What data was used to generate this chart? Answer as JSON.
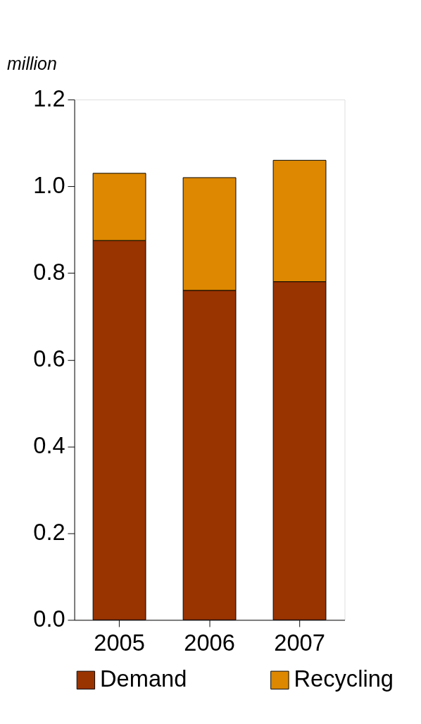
{
  "chart_data": {
    "type": "bar",
    "stacked": true,
    "ylabel": "million",
    "categories": [
      "2005",
      "2006",
      "2007"
    ],
    "series": [
      {
        "name": "Demand",
        "color": "#993300",
        "values": [
          0.875,
          0.76,
          0.78
        ]
      },
      {
        "name": "Recycling",
        "color": "#dd8800",
        "values": [
          0.155,
          0.26,
          0.28
        ]
      }
    ],
    "ylim": [
      0,
      1.2
    ],
    "yticks": [
      {
        "value": 0,
        "label": "0.0"
      },
      {
        "value": 0.2,
        "label": "0.2"
      },
      {
        "value": 0.4,
        "label": "0.4"
      },
      {
        "value": 0.6,
        "label": "0.6"
      },
      {
        "value": 0.8,
        "label": "0.8"
      },
      {
        "value": 1.0,
        "label": "1.0"
      },
      {
        "value": 1.2,
        "label": "1.2"
      }
    ],
    "grid": false,
    "legend": "bottom"
  }
}
